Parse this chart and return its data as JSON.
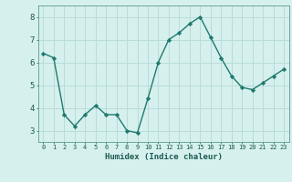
{
  "x": [
    0,
    1,
    2,
    3,
    4,
    5,
    6,
    7,
    8,
    9,
    10,
    11,
    12,
    13,
    14,
    15,
    16,
    17,
    18,
    19,
    20,
    21,
    22,
    23
  ],
  "y": [
    6.4,
    6.2,
    3.7,
    3.2,
    3.7,
    4.1,
    3.7,
    3.7,
    3.0,
    2.9,
    4.4,
    6.0,
    7.0,
    7.3,
    7.7,
    8.0,
    7.1,
    6.2,
    5.4,
    4.9,
    4.8,
    5.1,
    5.4,
    5.7
  ],
  "xlabel": "Humidex (Indice chaleur)",
  "ylim": [
    2.5,
    8.5
  ],
  "xlim": [
    -0.5,
    23.5
  ],
  "yticks": [
    3,
    4,
    5,
    6,
    7,
    8
  ],
  "xticks": [
    0,
    1,
    2,
    3,
    4,
    5,
    6,
    7,
    8,
    9,
    10,
    11,
    12,
    13,
    14,
    15,
    16,
    17,
    18,
    19,
    20,
    21,
    22,
    23
  ],
  "xtick_labels": [
    "0",
    "1",
    "2",
    "3",
    "4",
    "5",
    "6",
    "7",
    "8",
    "9",
    "10",
    "11",
    "12",
    "13",
    "14",
    "15",
    "16",
    "17",
    "18",
    "19",
    "20",
    "21",
    "22",
    "23"
  ],
  "line_color": "#1f7a6e",
  "marker": "D",
  "marker_size": 2.2,
  "background_color": "#d6f0ee",
  "grid_color": "#b8ddd9",
  "title": ""
}
